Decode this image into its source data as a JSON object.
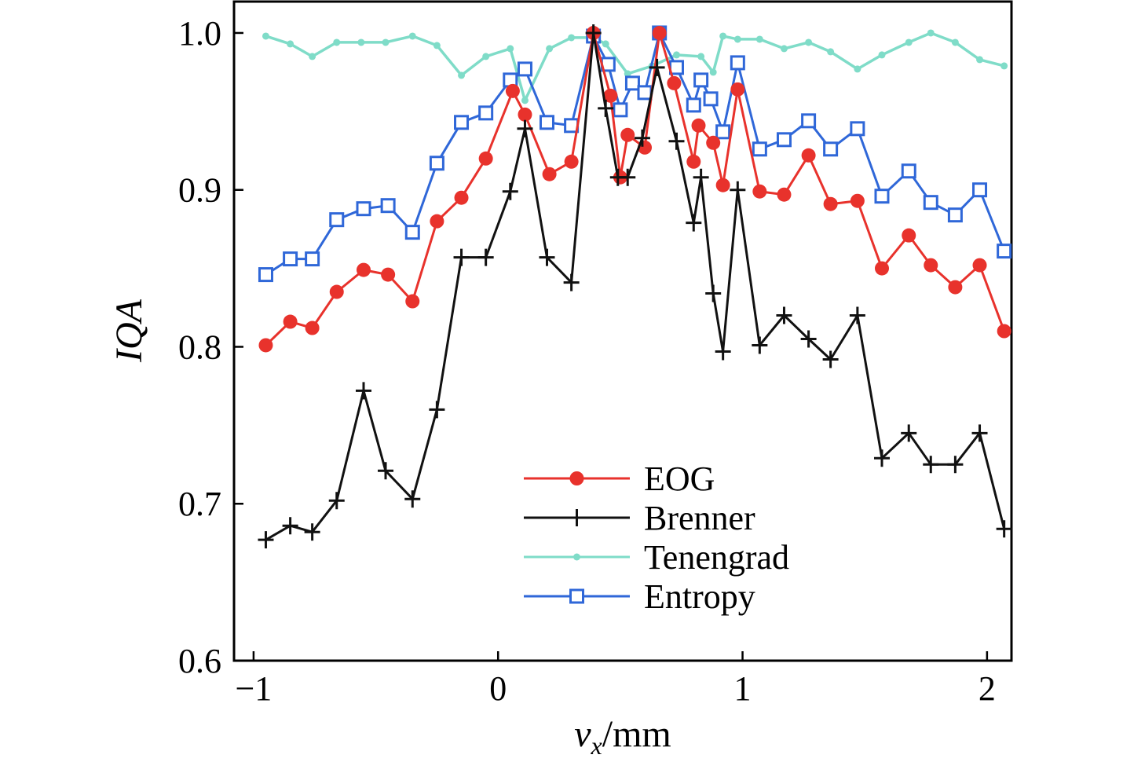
{
  "chart_data": {
    "type": "line",
    "title": "",
    "xlabel": {
      "var": "v",
      "sub": "x",
      "unit": "/mm"
    },
    "ylabel": "IQA",
    "xlim": [
      -1.08,
      2.1
    ],
    "ylim": [
      0.6,
      1.02
    ],
    "grid": false,
    "legend_position": "bottom-center",
    "x_ticks": [
      -1,
      0,
      1,
      2
    ],
    "x_tick_labels": [
      "−1",
      "0",
      "1",
      "2"
    ],
    "y_ticks": [
      0.6,
      0.7,
      0.8,
      0.9,
      1.0
    ],
    "y_tick_labels": [
      "0.6",
      "0.7",
      "0.8",
      "0.9",
      "1.0"
    ],
    "series": [
      {
        "name": "EOG",
        "color": "#e8322c",
        "marker": "filled-circle",
        "x": [
          -0.95,
          -0.85,
          -0.76,
          -0.66,
          -0.55,
          -0.45,
          -0.35,
          -0.25,
          -0.15,
          -0.05,
          0.06,
          0.11,
          0.21,
          0.3,
          0.39,
          0.46,
          0.5,
          0.53,
          0.6,
          0.66,
          0.72,
          0.8,
          0.82,
          0.88,
          0.92,
          0.98,
          1.07,
          1.17,
          1.27,
          1.36,
          1.47,
          1.57,
          1.68,
          1.77,
          1.87,
          1.97,
          2.07
        ],
        "y": [
          0.801,
          0.816,
          0.812,
          0.835,
          0.849,
          0.846,
          0.829,
          0.88,
          0.895,
          0.92,
          0.963,
          0.948,
          0.91,
          0.918,
          1.0,
          0.96,
          0.908,
          0.935,
          0.927,
          1.0,
          0.968,
          0.918,
          0.941,
          0.93,
          0.903,
          0.964,
          0.899,
          0.897,
          0.922,
          0.891,
          0.893,
          0.85,
          0.871,
          0.852,
          0.838,
          0.852,
          0.81
        ]
      },
      {
        "name": "Brenner",
        "color": "#111111",
        "marker": "plus",
        "x": [
          -0.95,
          -0.85,
          -0.76,
          -0.66,
          -0.55,
          -0.46,
          -0.35,
          -0.25,
          -0.15,
          -0.05,
          0.05,
          0.11,
          0.2,
          0.3,
          0.39,
          0.44,
          0.49,
          0.53,
          0.59,
          0.65,
          0.73,
          0.8,
          0.83,
          0.88,
          0.92,
          0.98,
          1.07,
          1.17,
          1.27,
          1.36,
          1.47,
          1.57,
          1.68,
          1.77,
          1.87,
          1.97,
          2.07
        ],
        "y": [
          0.677,
          0.686,
          0.682,
          0.702,
          0.772,
          0.721,
          0.703,
          0.76,
          0.857,
          0.857,
          0.899,
          0.939,
          0.857,
          0.841,
          1.0,
          0.952,
          0.908,
          0.908,
          0.933,
          0.978,
          0.931,
          0.879,
          0.908,
          0.834,
          0.797,
          0.9,
          0.801,
          0.82,
          0.805,
          0.792,
          0.82,
          0.729,
          0.745,
          0.725,
          0.725,
          0.745,
          0.684
        ]
      },
      {
        "name": "Tenengrad",
        "color": "#7fdcc8",
        "marker": "small-dot",
        "x": [
          -0.95,
          -0.85,
          -0.76,
          -0.66,
          -0.56,
          -0.46,
          -0.35,
          -0.25,
          -0.15,
          -0.05,
          0.05,
          0.11,
          0.21,
          0.3,
          0.39,
          0.44,
          0.53,
          0.63,
          0.73,
          0.83,
          0.88,
          0.92,
          0.98,
          1.07,
          1.17,
          1.27,
          1.36,
          1.47,
          1.57,
          1.68,
          1.77,
          1.87,
          1.97,
          2.07
        ],
        "y": [
          0.998,
          0.993,
          0.985,
          0.994,
          0.994,
          0.994,
          0.998,
          0.992,
          0.973,
          0.985,
          0.99,
          0.957,
          0.99,
          0.997,
          0.997,
          0.993,
          0.974,
          0.979,
          0.986,
          0.985,
          0.975,
          0.998,
          0.996,
          0.996,
          0.99,
          0.994,
          0.988,
          0.977,
          0.986,
          0.994,
          1.0,
          0.994,
          0.983,
          0.979
        ]
      },
      {
        "name": "Entropy",
        "color": "#2f67d8",
        "marker": "open-square",
        "x": [
          -0.95,
          -0.85,
          -0.76,
          -0.66,
          -0.55,
          -0.45,
          -0.35,
          -0.25,
          -0.15,
          -0.05,
          0.05,
          0.11,
          0.2,
          0.3,
          0.39,
          0.45,
          0.5,
          0.55,
          0.6,
          0.66,
          0.73,
          0.8,
          0.83,
          0.87,
          0.92,
          0.98,
          1.07,
          1.17,
          1.27,
          1.36,
          1.47,
          1.57,
          1.68,
          1.77,
          1.87,
          1.97,
          2.07
        ],
        "y": [
          0.846,
          0.856,
          0.856,
          0.881,
          0.888,
          0.89,
          0.873,
          0.917,
          0.943,
          0.949,
          0.97,
          0.977,
          0.943,
          0.941,
          0.998,
          0.98,
          0.951,
          0.968,
          0.962,
          1.0,
          0.978,
          0.954,
          0.97,
          0.958,
          0.937,
          0.981,
          0.926,
          0.932,
          0.944,
          0.926,
          0.939,
          0.896,
          0.912,
          0.892,
          0.884,
          0.9,
          0.861
        ]
      }
    ]
  }
}
